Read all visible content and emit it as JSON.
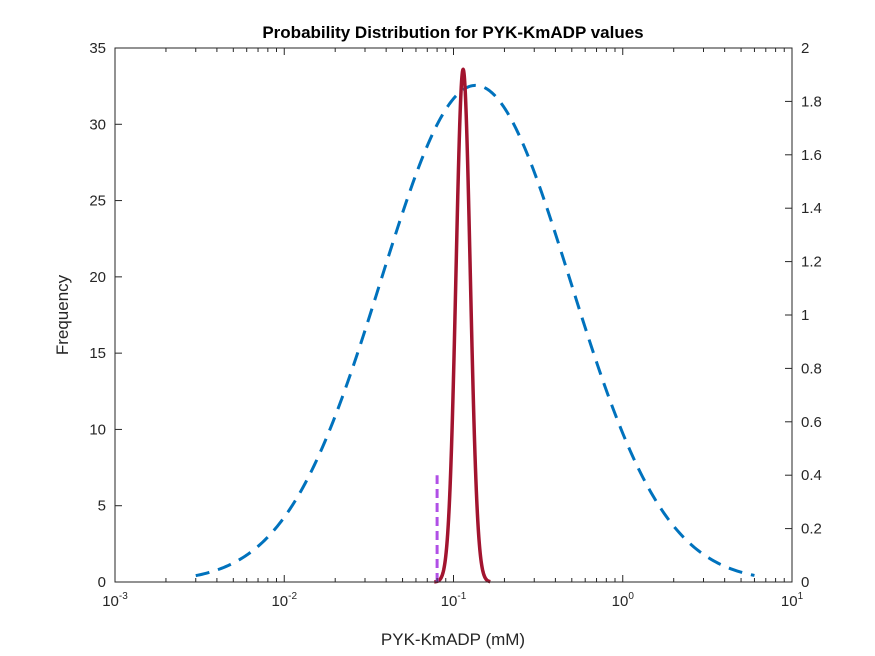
{
  "chart_data": {
    "type": "line",
    "title": "Probability Distribution for PYK-KmADP values",
    "xlabel": "PYK-KmADP (mM)",
    "ylabel": "Frequency",
    "x_scale": "log",
    "xlim": [
      0.001,
      10
    ],
    "ylim_left": [
      0,
      35
    ],
    "ylim_right": [
      0,
      2
    ],
    "x_ticks": [
      {
        "base": "10",
        "exp": "-3"
      },
      {
        "base": "10",
        "exp": "-2"
      },
      {
        "base": "10",
        "exp": "-1"
      },
      {
        "base": "10",
        "exp": "0"
      },
      {
        "base": "10",
        "exp": "1"
      }
    ],
    "y_ticks_left": [
      "0",
      "5",
      "10",
      "15",
      "20",
      "25",
      "30",
      "35"
    ],
    "y_ticks_right": [
      "0",
      "0.2",
      "0.4",
      "0.6",
      "0.8",
      "1",
      "1.2",
      "1.4",
      "1.6",
      "1.8",
      "2"
    ],
    "grid": false,
    "legend": "none",
    "series": [
      {
        "style": "dashed",
        "color": "#0072BD",
        "axis": "right",
        "distribution": "lognormal",
        "x_range": [
          0.003,
          6
        ],
        "peak_x": 0.135,
        "peak_y": 1.86,
        "sigma_log10": 0.56
      },
      {
        "style": "solid",
        "color": "#A2142F",
        "axis": "left",
        "distribution": "lognormal",
        "x_range": [
          0.077,
          0.165
        ],
        "peak_x": 0.114,
        "peak_y": 33.6,
        "sigma_log10": 0.042
      },
      {
        "style": "dashed",
        "color": "#B04FE6",
        "axis": "left",
        "x": [
          0.08,
          0.08
        ],
        "y": [
          0,
          7
        ]
      }
    ]
  }
}
